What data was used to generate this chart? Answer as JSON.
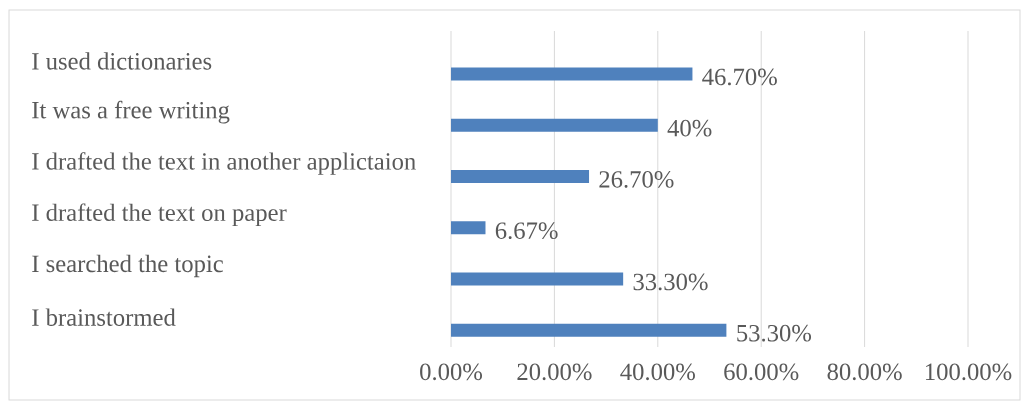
{
  "chart_data": {
    "type": "bar",
    "orientation": "horizontal",
    "categories": [
      "I used dictionaries",
      "It was a free writing",
      "I drafted the text in another applictaion",
      "I drafted the text on paper",
      "I searched the topic",
      "I brainstormed"
    ],
    "values": [
      46.7,
      40,
      26.7,
      6.67,
      33.3,
      53.3
    ],
    "value_labels": [
      "46.70%",
      "40%",
      "26.70%",
      "6.67%",
      "33.30%",
      "53.30%"
    ],
    "color": "#4f81bd",
    "xlim": [
      0,
      100
    ],
    "xticks": [
      {
        "value": 0,
        "label": "0.00%"
      },
      {
        "value": 20,
        "label": "20.00%"
      },
      {
        "value": 40,
        "label": "40.00%"
      },
      {
        "value": 60,
        "label": "60.00%"
      },
      {
        "value": 80,
        "label": "80.00%"
      },
      {
        "value": 100,
        "label": "100.00%"
      }
    ],
    "grid": "x"
  }
}
